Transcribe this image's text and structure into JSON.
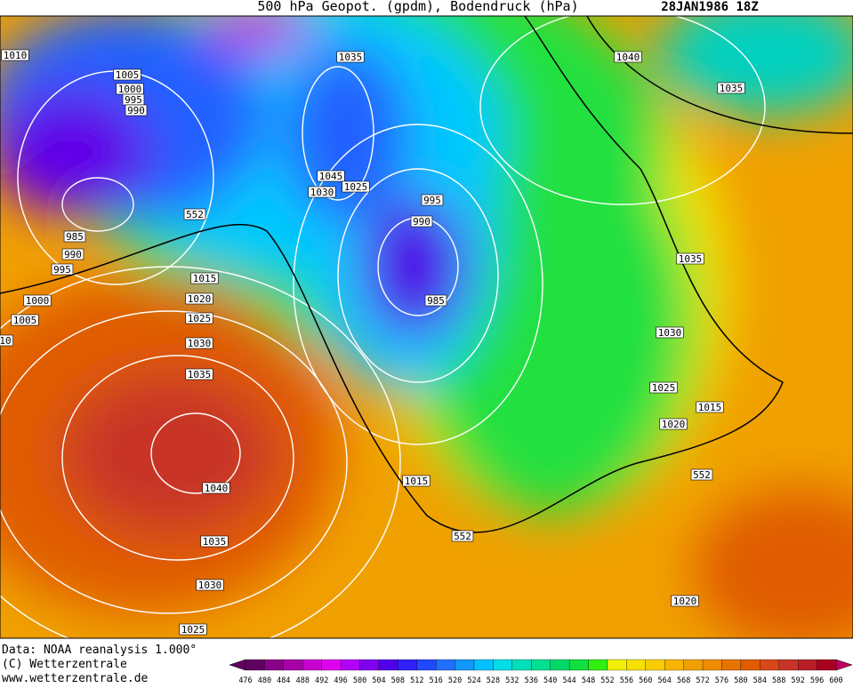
{
  "header": {
    "title": "500 hPa Geopot. (gpdm), Bodendruck (hPa)",
    "date": "28JAN1986 18Z"
  },
  "map": {
    "isobar_labels": [
      "1010",
      "1005",
      "1000",
      "995",
      "990",
      "1035",
      "1040",
      "1035",
      "1045",
      "1030",
      "1025",
      "995",
      "990",
      "985",
      "552",
      "985",
      "990",
      "995",
      "1000",
      "1005",
      "10",
      "1015",
      "1020",
      "1025",
      "1030",
      "1035",
      "1040",
      "1035",
      "1030",
      "1025",
      "1035",
      "1030",
      "1025",
      "1020",
      "1015",
      "552",
      "1015",
      "552",
      "1020"
    ]
  },
  "footer": {
    "source": "Data: NOAA reanalysis 1.000°",
    "copyright": "(C) Wetterzentrale",
    "url": "www.wetterzentrale.de"
  },
  "legend": {
    "labels": [
      476,
      480,
      484,
      488,
      492,
      496,
      500,
      504,
      508,
      512,
      516,
      520,
      524,
      528,
      532,
      536,
      540,
      544,
      548,
      552,
      556,
      560,
      564,
      568,
      572,
      576,
      580,
      584,
      588,
      592,
      596,
      600
    ],
    "colors": [
      "#600060",
      "#880088",
      "#a800a8",
      "#c800d0",
      "#e000f0",
      "#b000f8",
      "#8000f0",
      "#5000e8",
      "#3020ff",
      "#2048ff",
      "#2070ff",
      "#1098ff",
      "#00c0ff",
      "#00dce8",
      "#00e0b8",
      "#00e090",
      "#00d868",
      "#10e040",
      "#30f010",
      "#f0f000",
      "#f8e000",
      "#f8cc00",
      "#f8b400",
      "#f0a000",
      "#f08c00",
      "#e87400",
      "#e05c00",
      "#d84818",
      "#c83428",
      "#b82028",
      "#a80020",
      "#c00060"
    ]
  }
}
